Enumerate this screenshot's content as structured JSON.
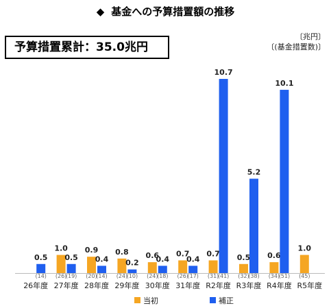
{
  "header": {
    "bullet": "◆",
    "title": "基金への予算措置額の推移",
    "total_label": "予算措置累計：35.0兆円",
    "unit_line1": "〔兆円〕",
    "unit_line2": "〔(基金措置数)〕"
  },
  "colors": {
    "initial": "#F5A623",
    "supplementary": "#1F5FEF"
  },
  "chart_data": {
    "type": "bar",
    "categories": [
      "26年度",
      "27年度",
      "28年度",
      "29年度",
      "30年度",
      "31年度",
      "R2年度",
      "R3年度",
      "R4年度",
      "R5年度"
    ],
    "series": [
      {
        "name": "当初",
        "values": [
          null,
          1.0,
          0.9,
          0.8,
          0.6,
          0.7,
          0.7,
          0.5,
          0.6,
          1.0
        ],
        "labels": [
          "",
          "1.0",
          "0.9",
          "0.8",
          "0.6",
          "0.7",
          "0.7",
          "0.5",
          "0.6",
          "1.0"
        ]
      },
      {
        "name": "補正",
        "values": [
          0.5,
          0.5,
          0.4,
          0.2,
          0.4,
          0.4,
          10.7,
          5.2,
          10.1,
          null
        ],
        "labels": [
          "0.5",
          "0.5",
          "0.4",
          "0.2",
          "0.4",
          "0.4",
          "10.7",
          "5.2",
          "10.1",
          ""
        ]
      }
    ],
    "fund_counts": [
      [
        "",
        "(14)"
      ],
      [
        "(26)",
        "(19)"
      ],
      [
        "(20)",
        "(14)"
      ],
      [
        "(24)",
        "(10)"
      ],
      [
        "(24)",
        "(18)"
      ],
      [
        "(26)",
        "(17)"
      ],
      [
        "(31)",
        "(41)"
      ],
      [
        "(32)",
        "(38)"
      ],
      [
        "(34)",
        "(51)"
      ],
      [
        "(45)",
        ""
      ]
    ],
    "ylim": [
      0,
      11.5
    ],
    "grid": false,
    "legend": "bottom-center",
    "title": "",
    "xlabel": "",
    "ylabel": ""
  }
}
